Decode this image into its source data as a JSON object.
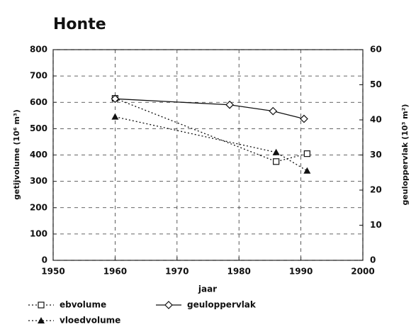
{
  "chart_data": {
    "type": "line",
    "title": "Honte",
    "x_label": "jaar",
    "y_label": "getijvolume (10⁶ m³)",
    "y2_label": "geuloppervlak (10³ m²)",
    "xlim": [
      1950,
      2000
    ],
    "xticks": [
      1950,
      1960,
      1970,
      1980,
      1990,
      2000
    ],
    "ylim": [
      0,
      800
    ],
    "yticks": [
      0,
      100,
      200,
      300,
      400,
      500,
      600,
      700,
      800
    ],
    "y2lim": [
      0,
      60
    ],
    "y2ticks": [
      0,
      10,
      20,
      30,
      40,
      50,
      60
    ],
    "grid": true,
    "series": [
      {
        "name": "ebvolume",
        "color": "#111111",
        "marker": "square",
        "dash": "dotted",
        "x": [
          1960,
          1986,
          1991
        ],
        "values": [
          615,
          375,
          405
        ]
      },
      {
        "name": "geuloppervlak",
        "color": "#111111",
        "marker": "diamond",
        "dash": "solid",
        "axis": "y2",
        "x": [
          1960,
          1978.5,
          1985.5,
          1990.5
        ],
        "values": [
          46,
          44.3,
          42.5,
          40.3
        ]
      },
      {
        "name": "vloedvolume",
        "color": "#111111",
        "marker": "triangle",
        "dash": "dotted",
        "x": [
          1960,
          1986,
          1991
        ],
        "values": [
          545,
          410,
          340
        ]
      }
    ]
  }
}
